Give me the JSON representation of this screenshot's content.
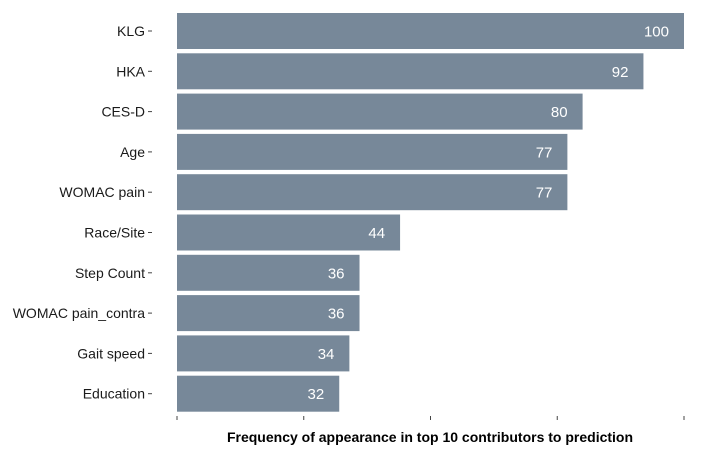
{
  "chart_data": {
    "type": "bar",
    "orientation": "horizontal",
    "categories": [
      "KLG",
      "HKA",
      "CES-D",
      "Age",
      "WOMAC pain",
      "Race/Site",
      "Step Count",
      "WOMAC pain_contra",
      "Gait speed",
      "Education"
    ],
    "values": [
      100,
      92,
      80,
      77,
      77,
      44,
      36,
      36,
      34,
      32
    ],
    "xlabel": "Frequency of appearance in top 10 contributors to prediction",
    "ylabel": "",
    "title": "",
    "xlim": [
      0,
      100
    ],
    "x_ticks": [
      0,
      25,
      50,
      75,
      100
    ],
    "x_tick_labels_shown": false,
    "grid": false,
    "legend": "none",
    "bar_color": "#778899",
    "value_label_color": "#ffffff"
  }
}
